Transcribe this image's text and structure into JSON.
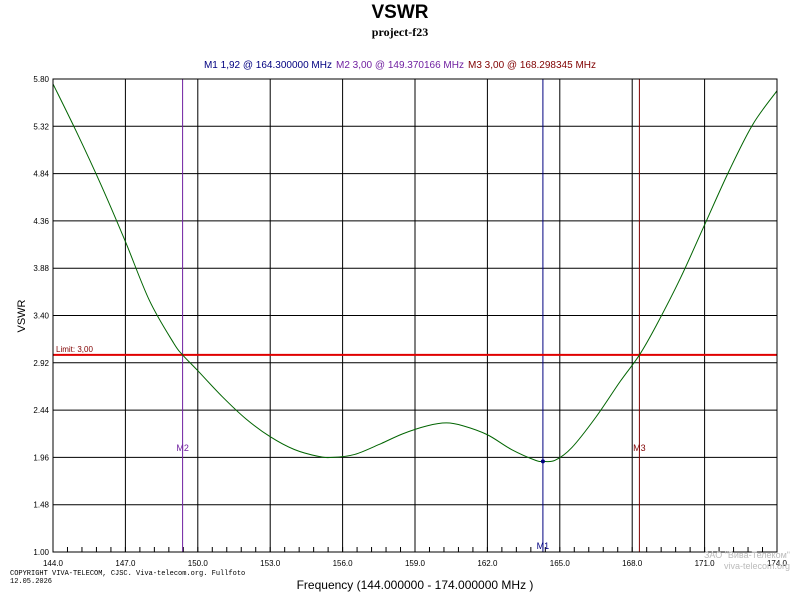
{
  "chart_data": {
    "type": "line",
    "title": "VSWR",
    "subtitle": "project-f23",
    "xlabel": "Frequency (144.000000 - 174.000000 MHz )",
    "ylabel": "VSWR",
    "xlim": [
      144.0,
      174.0
    ],
    "ylim": [
      1.0,
      5.8
    ],
    "x_ticks": [
      "144.0",
      "147.0",
      "150.0",
      "153.0",
      "156.0",
      "159.0",
      "162.0",
      "165.0",
      "168.0",
      "171.0",
      "174.0"
    ],
    "y_ticks": [
      "1.00",
      "1.48",
      "1.96",
      "2.44",
      "2.92",
      "3.40",
      "3.88",
      "4.36",
      "4.84",
      "5.32",
      "5.80"
    ],
    "grid": true,
    "series": [
      {
        "color": "#006400",
        "x": [
          144.0,
          145.0,
          146.0,
          147.0,
          148.0,
          149.0,
          149.37,
          150.0,
          151.0,
          152.0,
          153.0,
          154.0,
          155.0,
          155.6,
          156.5,
          157.5,
          158.5,
          159.5,
          160.3,
          161.0,
          162.0,
          163.0,
          164.0,
          164.3,
          164.8,
          165.5,
          166.5,
          167.5,
          168.3,
          169.0,
          170.0,
          171.0,
          172.0,
          173.0,
          174.0
        ],
        "y": [
          5.75,
          5.25,
          4.72,
          4.15,
          3.55,
          3.12,
          3.0,
          2.84,
          2.58,
          2.35,
          2.17,
          2.04,
          1.97,
          1.96,
          1.99,
          2.09,
          2.2,
          2.28,
          2.31,
          2.28,
          2.19,
          2.04,
          1.93,
          1.92,
          1.93,
          2.06,
          2.37,
          2.73,
          3.0,
          3.3,
          3.78,
          4.32,
          4.86,
          5.34,
          5.68
        ]
      }
    ],
    "limit": {
      "label": "Limit: 3,00",
      "value": 3.0,
      "color": "#e00000"
    },
    "markers": [
      {
        "name": "M1",
        "readout": "M1  1,92 @ 164.300000 MHz",
        "x": 164.3,
        "y": 1.92,
        "color": "#000080"
      },
      {
        "name": "M2",
        "readout": "M2  3,00 @ 149.370166 MHz",
        "x": 149.370166,
        "y": 3.0,
        "color": "#7020a0"
      },
      {
        "name": "M3",
        "readout": "M3  3,00 @ 168.298345 MHz",
        "x": 168.298345,
        "y": 3.0,
        "color": "#800000"
      }
    ]
  },
  "footer": {
    "copyright_line1": "COPYRIGHT VIVA-TELECOM, CJSC. Viva-telecom.org. Fullfoto",
    "copyright_line2": "12.05.2026",
    "company_line1": "ЗАО \"Вива-Телеком\"",
    "company_line2": "viva-telecom.org"
  }
}
